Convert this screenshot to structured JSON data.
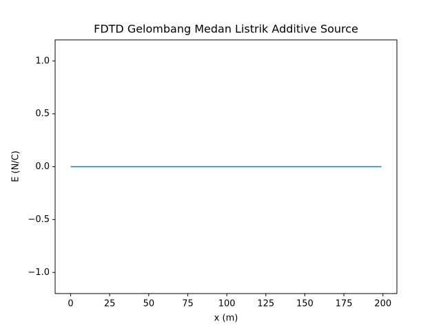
{
  "chart_data": {
    "type": "line",
    "title": "FDTD Gelombang Medan Listrik Additive Source",
    "x_label": "x (m)",
    "y_label": "E (N/C)",
    "x": [
      0,
      199
    ],
    "series": [
      {
        "name": "E",
        "color": "#1f77b4",
        "values": [
          0,
          0
        ]
      }
    ],
    "xlim": [
      -9.95,
      208.95
    ],
    "ylim": [
      -1.2,
      1.2
    ],
    "xticks": [
      0,
      25,
      50,
      75,
      100,
      125,
      150,
      175,
      200
    ],
    "yticks": [
      {
        "value": -1,
        "label": "−1.0"
      },
      {
        "value": -0.5,
        "label": "−0.5"
      },
      {
        "value": 0,
        "label": "0.0"
      },
      {
        "value": 0.5,
        "label": "0.5"
      },
      {
        "value": 1,
        "label": "1.0"
      }
    ],
    "grid": false
  }
}
